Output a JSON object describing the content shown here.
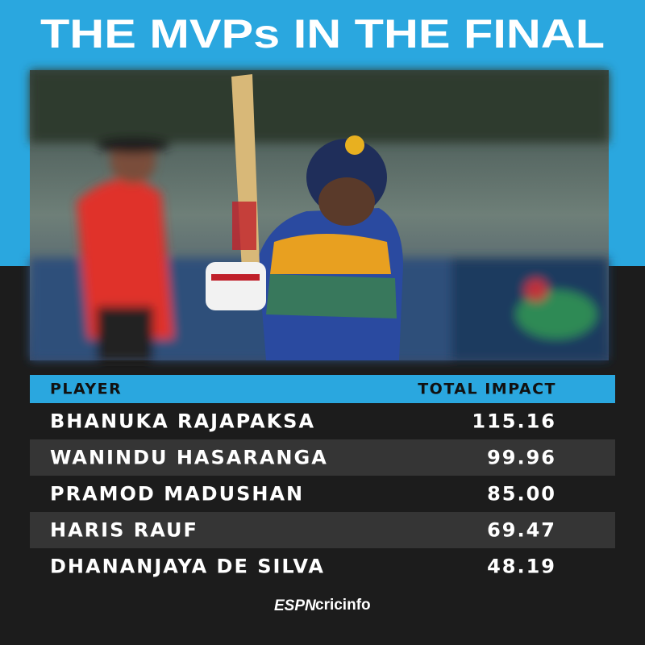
{
  "header": {
    "title": "THE MVPs IN THE FINAL"
  },
  "table": {
    "columns": [
      "PLAYER",
      "TOTAL IMPACT"
    ],
    "rows": [
      [
        "BHANUKA RAJAPAKSA",
        "115.16"
      ],
      [
        "WANINDU HASARANGA",
        "99.96"
      ],
      [
        "PRAMOD MADUSHAN",
        "85.00"
      ],
      [
        "HARIS RAUF",
        "69.47"
      ],
      [
        "DHANANJAYA DE SILVA",
        "48.19"
      ]
    ]
  },
  "footer": {
    "brand_mark": "ESPN",
    "brand_name": "cricinfo"
  }
}
